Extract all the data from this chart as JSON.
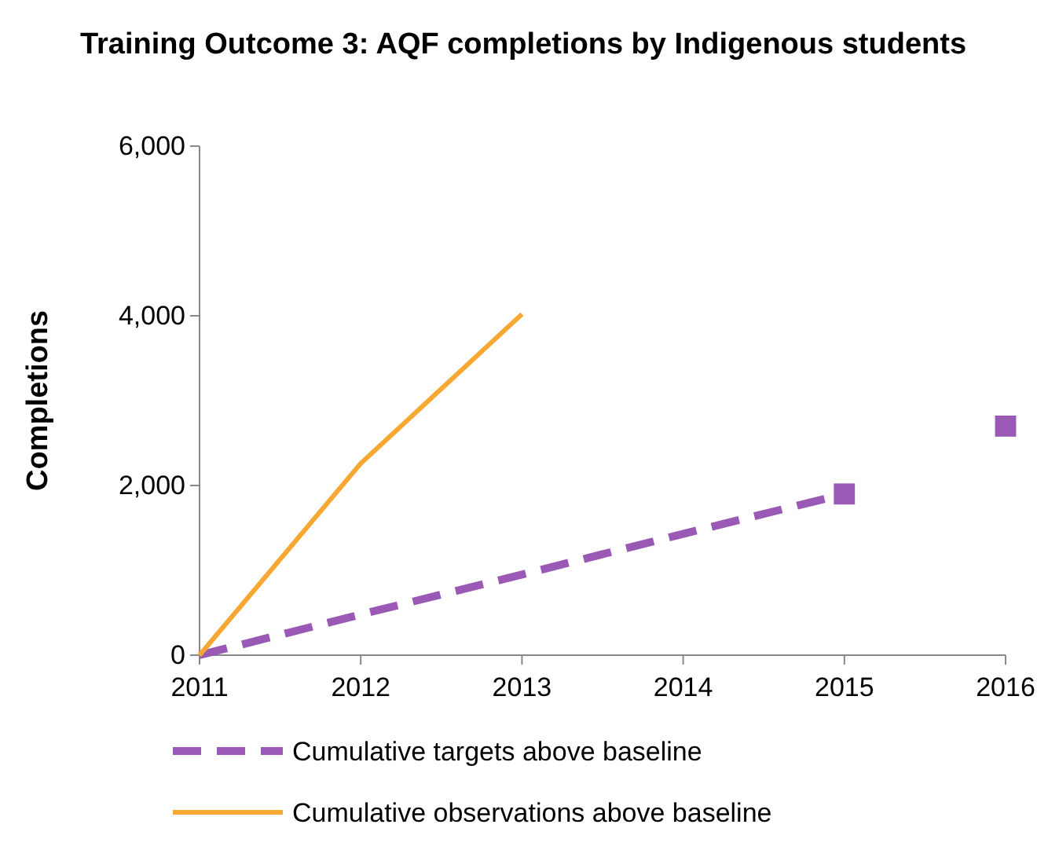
{
  "chart_data": {
    "type": "line",
    "title": "Training Outcome 3: AQF completions by Indigenous students",
    "ylabel": "Completions",
    "x": [
      2011,
      2012,
      2013,
      2014,
      2015,
      2016
    ],
    "xlim": [
      2011,
      2016
    ],
    "xticks": [
      2011,
      2012,
      2013,
      2014,
      2015,
      2016
    ],
    "ylim": [
      0,
      6000
    ],
    "yticks": [
      {
        "value": 0,
        "label": "0"
      },
      {
        "value": 2000,
        "label": "2,000"
      },
      {
        "value": 4000,
        "label": "4,000"
      },
      {
        "value": 6000,
        "label": "6,000"
      }
    ],
    "grid": false,
    "legend": "bottom",
    "series": [
      {
        "name": "Cumulative targets above baseline",
        "color": "#9b59b6",
        "line_style": "dashed",
        "marker": "none",
        "values": [
          0,
          480,
          950,
          1430,
          1900,
          null
        ]
      },
      {
        "type": "scatter",
        "color": "#9b59b6",
        "marker": "square",
        "values": [
          null,
          null,
          null,
          null,
          1900,
          2700
        ]
      },
      {
        "name": "Cumulative observations above baseline",
        "color": "#f7a833",
        "line_style": "solid",
        "marker": "none",
        "values": [
          0,
          2260,
          4020,
          null,
          null,
          null
        ]
      }
    ]
  }
}
